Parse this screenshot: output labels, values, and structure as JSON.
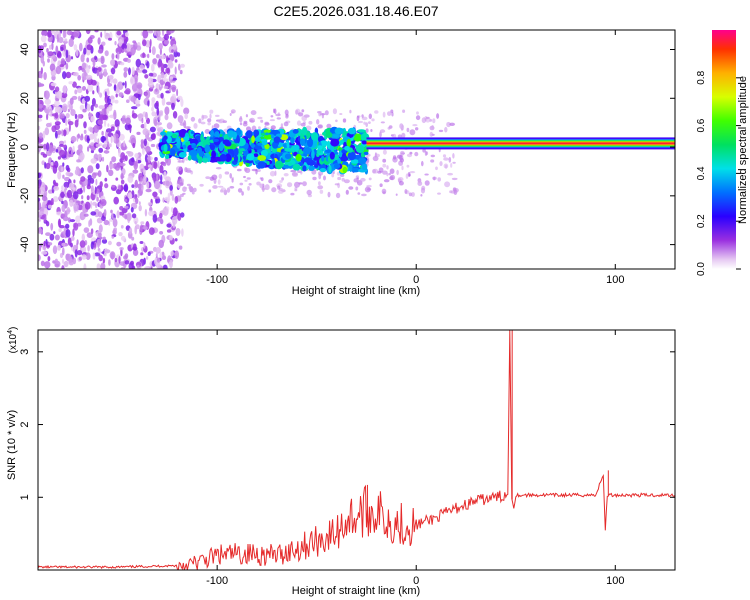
{
  "title": "C2E5.2026.031.18.46.E07",
  "chart_data": [
    {
      "type": "heatmap",
      "xlabel": "Height of straight line (km)",
      "ylabel": "Frequency (Hz)",
      "xlim": [
        -190,
        130
      ],
      "ylim": [
        -50,
        48
      ],
      "xticks": [
        -100,
        0,
        100
      ],
      "yticks": [
        -40,
        -20,
        0,
        20,
        40
      ],
      "colorbar": {
        "label": "Normalized spectral amplitude",
        "range": [
          0,
          1
        ],
        "ticks": [
          0.0,
          0.2,
          0.4,
          0.6,
          0.8
        ]
      },
      "regions": [
        {
          "x_range": [
            -190,
            -115
          ],
          "f_range": [
            -50,
            48
          ],
          "amplitude": 0.05
        },
        {
          "x_range": [
            -128,
            -25
          ],
          "f_range": [
            -15,
            10
          ],
          "amplitude": 0.3
        },
        {
          "x_range": [
            -25,
            130
          ],
          "f_range": [
            -1,
            4
          ],
          "amplitude": 0.9
        }
      ]
    },
    {
      "type": "line",
      "xlabel": "Height of straight line (km)",
      "ylabel": "SNR (10 * v/v)",
      "y_multiplier": "(x10",
      "y_multiplier_exp": "4",
      "y_multiplier_close": ")",
      "xlim": [
        -190,
        130
      ],
      "ylim": [
        0,
        3.3
      ],
      "xticks": [
        -100,
        0,
        100
      ],
      "yticks": [
        1,
        2,
        3
      ],
      "series": [
        {
          "color": "#e52a2a",
          "x": [
            -190,
            -150,
            -120,
            -110,
            -100,
            -90,
            -80,
            -70,
            -60,
            -50,
            -40,
            -35,
            -30,
            -25,
            -20,
            -15,
            -10,
            -5,
            0,
            10,
            20,
            30,
            40,
            46,
            47,
            48,
            49,
            50,
            60,
            70,
            80,
            90,
            94,
            95,
            96,
            97,
            100,
            110,
            120,
            130
          ],
          "y": [
            0.04,
            0.04,
            0.06,
            0.1,
            0.2,
            0.22,
            0.22,
            0.2,
            0.3,
            0.4,
            0.5,
            0.7,
            0.75,
            0.8,
            0.8,
            0.7,
            0.65,
            0.62,
            0.62,
            0.72,
            0.85,
            0.95,
            1.0,
            1.03,
            3.3,
            1.0,
            0.85,
            1.03,
            1.03,
            1.03,
            1.03,
            1.03,
            1.3,
            0.55,
            1.03,
            1.03,
            1.03,
            1.03,
            1.03,
            1.03
          ],
          "spikes": [
            {
              "x": -24.5,
              "y": 1.17
            },
            {
              "x": 48.2,
              "y": 3.3
            },
            {
              "x": 96.5,
              "y": 1.37
            }
          ]
        }
      ]
    }
  ]
}
